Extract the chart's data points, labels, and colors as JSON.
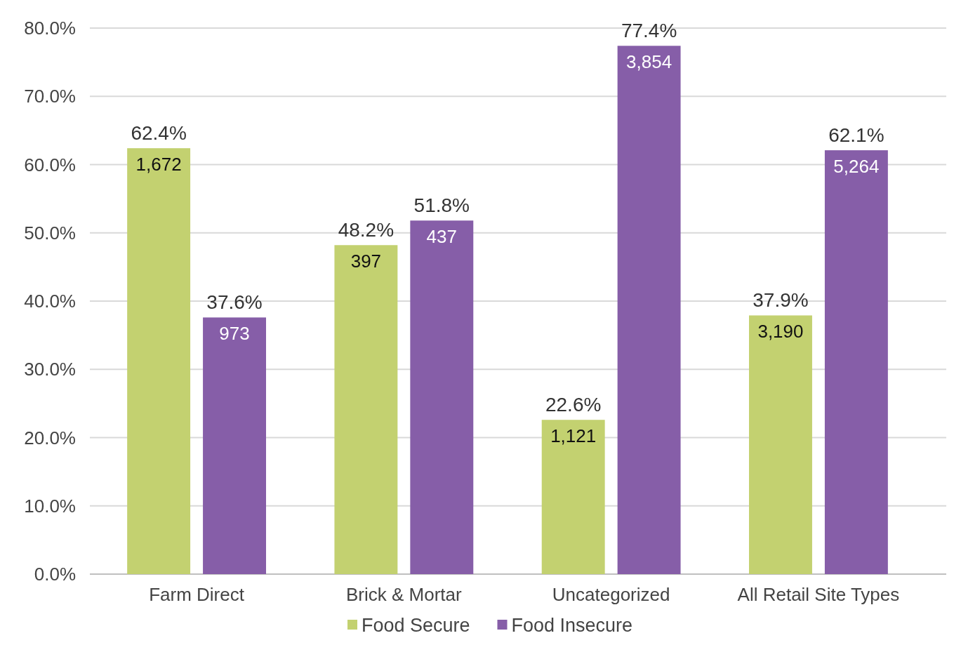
{
  "chart_data": {
    "type": "bar",
    "categories": [
      "Farm Direct",
      "Brick & Mortar",
      "Uncategorized",
      "All Retail Site Types"
    ],
    "series": [
      {
        "name": "Food Secure",
        "color": "#c3d170",
        "values": [
          62.4,
          48.2,
          22.6,
          37.9
        ],
        "value_labels": [
          "62.4%",
          "48.2%",
          "22.6%",
          "37.9%"
        ]
      },
      {
        "name": "Food Insecure",
        "color": "#865ea8",
        "values": [
          37.6,
          51.8,
          77.4,
          62.1
        ],
        "value_labels": [
          "37.6%",
          "51.8%",
          "77.4%",
          "62.1%"
        ]
      }
    ],
    "ylim": [
      0,
      80
    ],
    "yticks": [
      {
        "value": 0,
        "label": "0.0%"
      },
      {
        "value": 10,
        "label": "10.0%"
      },
      {
        "value": 20,
        "label": "20.0%"
      },
      {
        "value": 30,
        "label": "30.0%"
      },
      {
        "value": 40,
        "label": "40.0%"
      },
      {
        "value": 50,
        "label": "50.0%"
      },
      {
        "value": 60,
        "label": "60.0%"
      },
      {
        "value": 70,
        "label": "70.0%"
      },
      {
        "value": 80,
        "label": "80.0%"
      }
    ],
    "grid": "y",
    "legend": "bottom",
    "annotations": [
      "1,672",
      "973",
      "397",
      "437",
      "1,121",
      "3,854",
      "3,190",
      "5,264"
    ]
  }
}
